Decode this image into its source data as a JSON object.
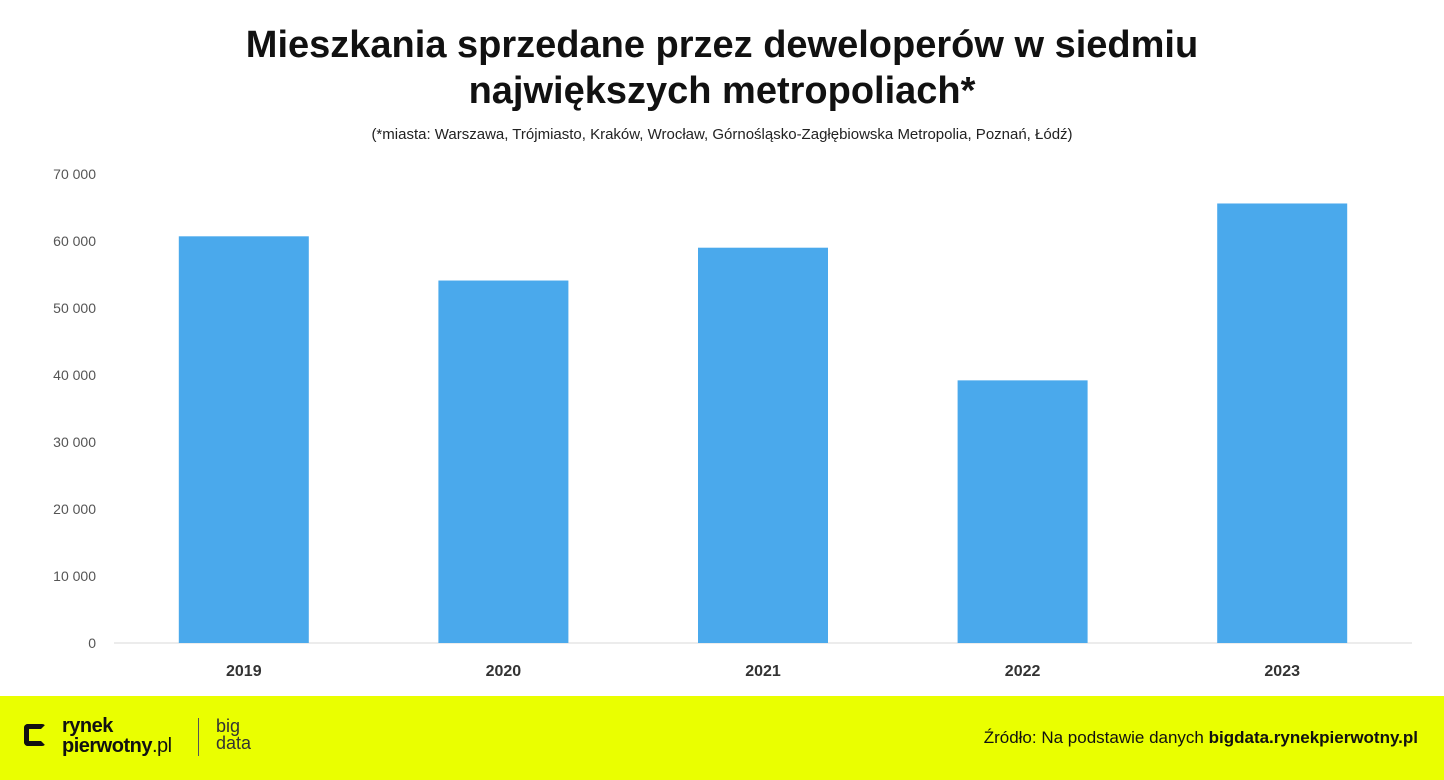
{
  "chart_data": {
    "type": "bar",
    "title_lines": [
      "Mieszkania sprzedane przez deweloperów w siedmiu",
      "największych metropoliach*"
    ],
    "subtitle": "(*miasta: Warszawa, Trójmiasto, Kraków, Wrocław, Górnośląsko-Zagłębiowska Metropolia, Poznań, Łódź)",
    "categories": [
      "2019",
      "2020",
      "2021",
      "2022",
      "2023"
    ],
    "values": [
      60700,
      54100,
      59000,
      39200,
      65600
    ],
    "ylim": [
      0,
      70000
    ],
    "yticks": [
      0,
      10000,
      20000,
      30000,
      40000,
      50000,
      60000,
      70000
    ],
    "ytick_labels": [
      "0",
      "10 000",
      "20 000",
      "30 000",
      "40 000",
      "50 000",
      "60 000",
      "70 000"
    ],
    "grid": false,
    "bar_color": "#4aa9ec"
  },
  "footer": {
    "logo_line1": "rynek",
    "logo_line2": "pierwotny",
    "logo_line2_suffix": ".pl",
    "bigdata_line1": "big",
    "bigdata_line2": "data",
    "source_prefix": "Źródło: Na podstawie danych ",
    "source_bold": "bigdata.rynekpierwotny.pl",
    "background_color": "#eaff00"
  }
}
